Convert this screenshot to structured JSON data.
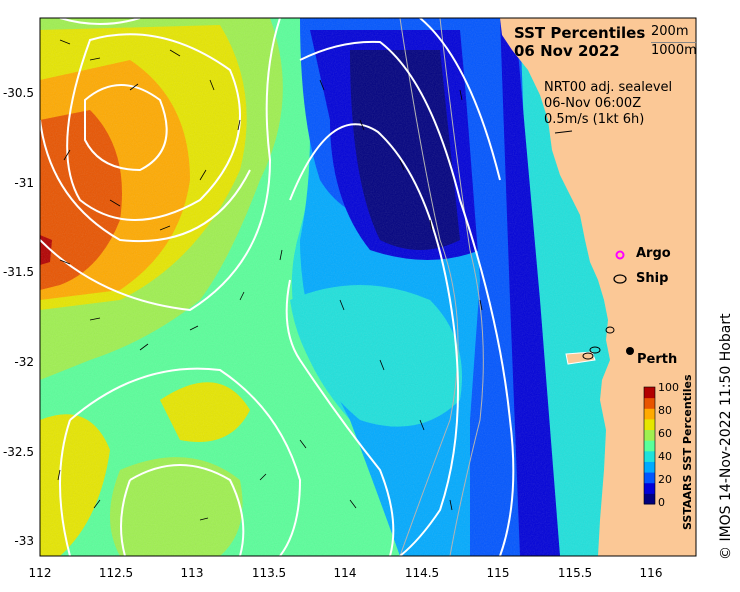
{
  "title": {
    "line1": "SST Percentiles",
    "line2": "06 Nov 2022"
  },
  "contour_legend": [
    "200m",
    "1000m"
  ],
  "current_info": [
    "NRT00 adj. sealevel",
    "06-Nov 06:00Z",
    "0.5m/s (1kt 6h)"
  ],
  "legend": {
    "argo": "Argo",
    "ship": "Ship"
  },
  "places": {
    "perth": "Perth"
  },
  "axes": {
    "x_ticks": [
      "112",
      "112.5",
      "113",
      "113.5",
      "114",
      "114.5",
      "115",
      "115.5",
      "116"
    ],
    "y_ticks": [
      "-30.5",
      "-31",
      "-31.5",
      "-32",
      "-32.5",
      "-33"
    ]
  },
  "colorbar": {
    "label": "SSTAARS SST Percentiles",
    "ticks": [
      "100",
      "80",
      "60",
      "40",
      "20",
      "0"
    ],
    "colors": [
      "#00007f",
      "#0000d8",
      "#0055ff",
      "#00aaff",
      "#1ee1dc",
      "#5aff9a",
      "#9ff050",
      "#e6e600",
      "#ffaa00",
      "#e85400",
      "#b20000"
    ]
  },
  "credit": "© IMOS 14-Nov-2022 11:50 Hobart",
  "colors": {
    "land": "#fbc896",
    "contour": "#ffffff",
    "bathy": "#b4b4b4"
  }
}
